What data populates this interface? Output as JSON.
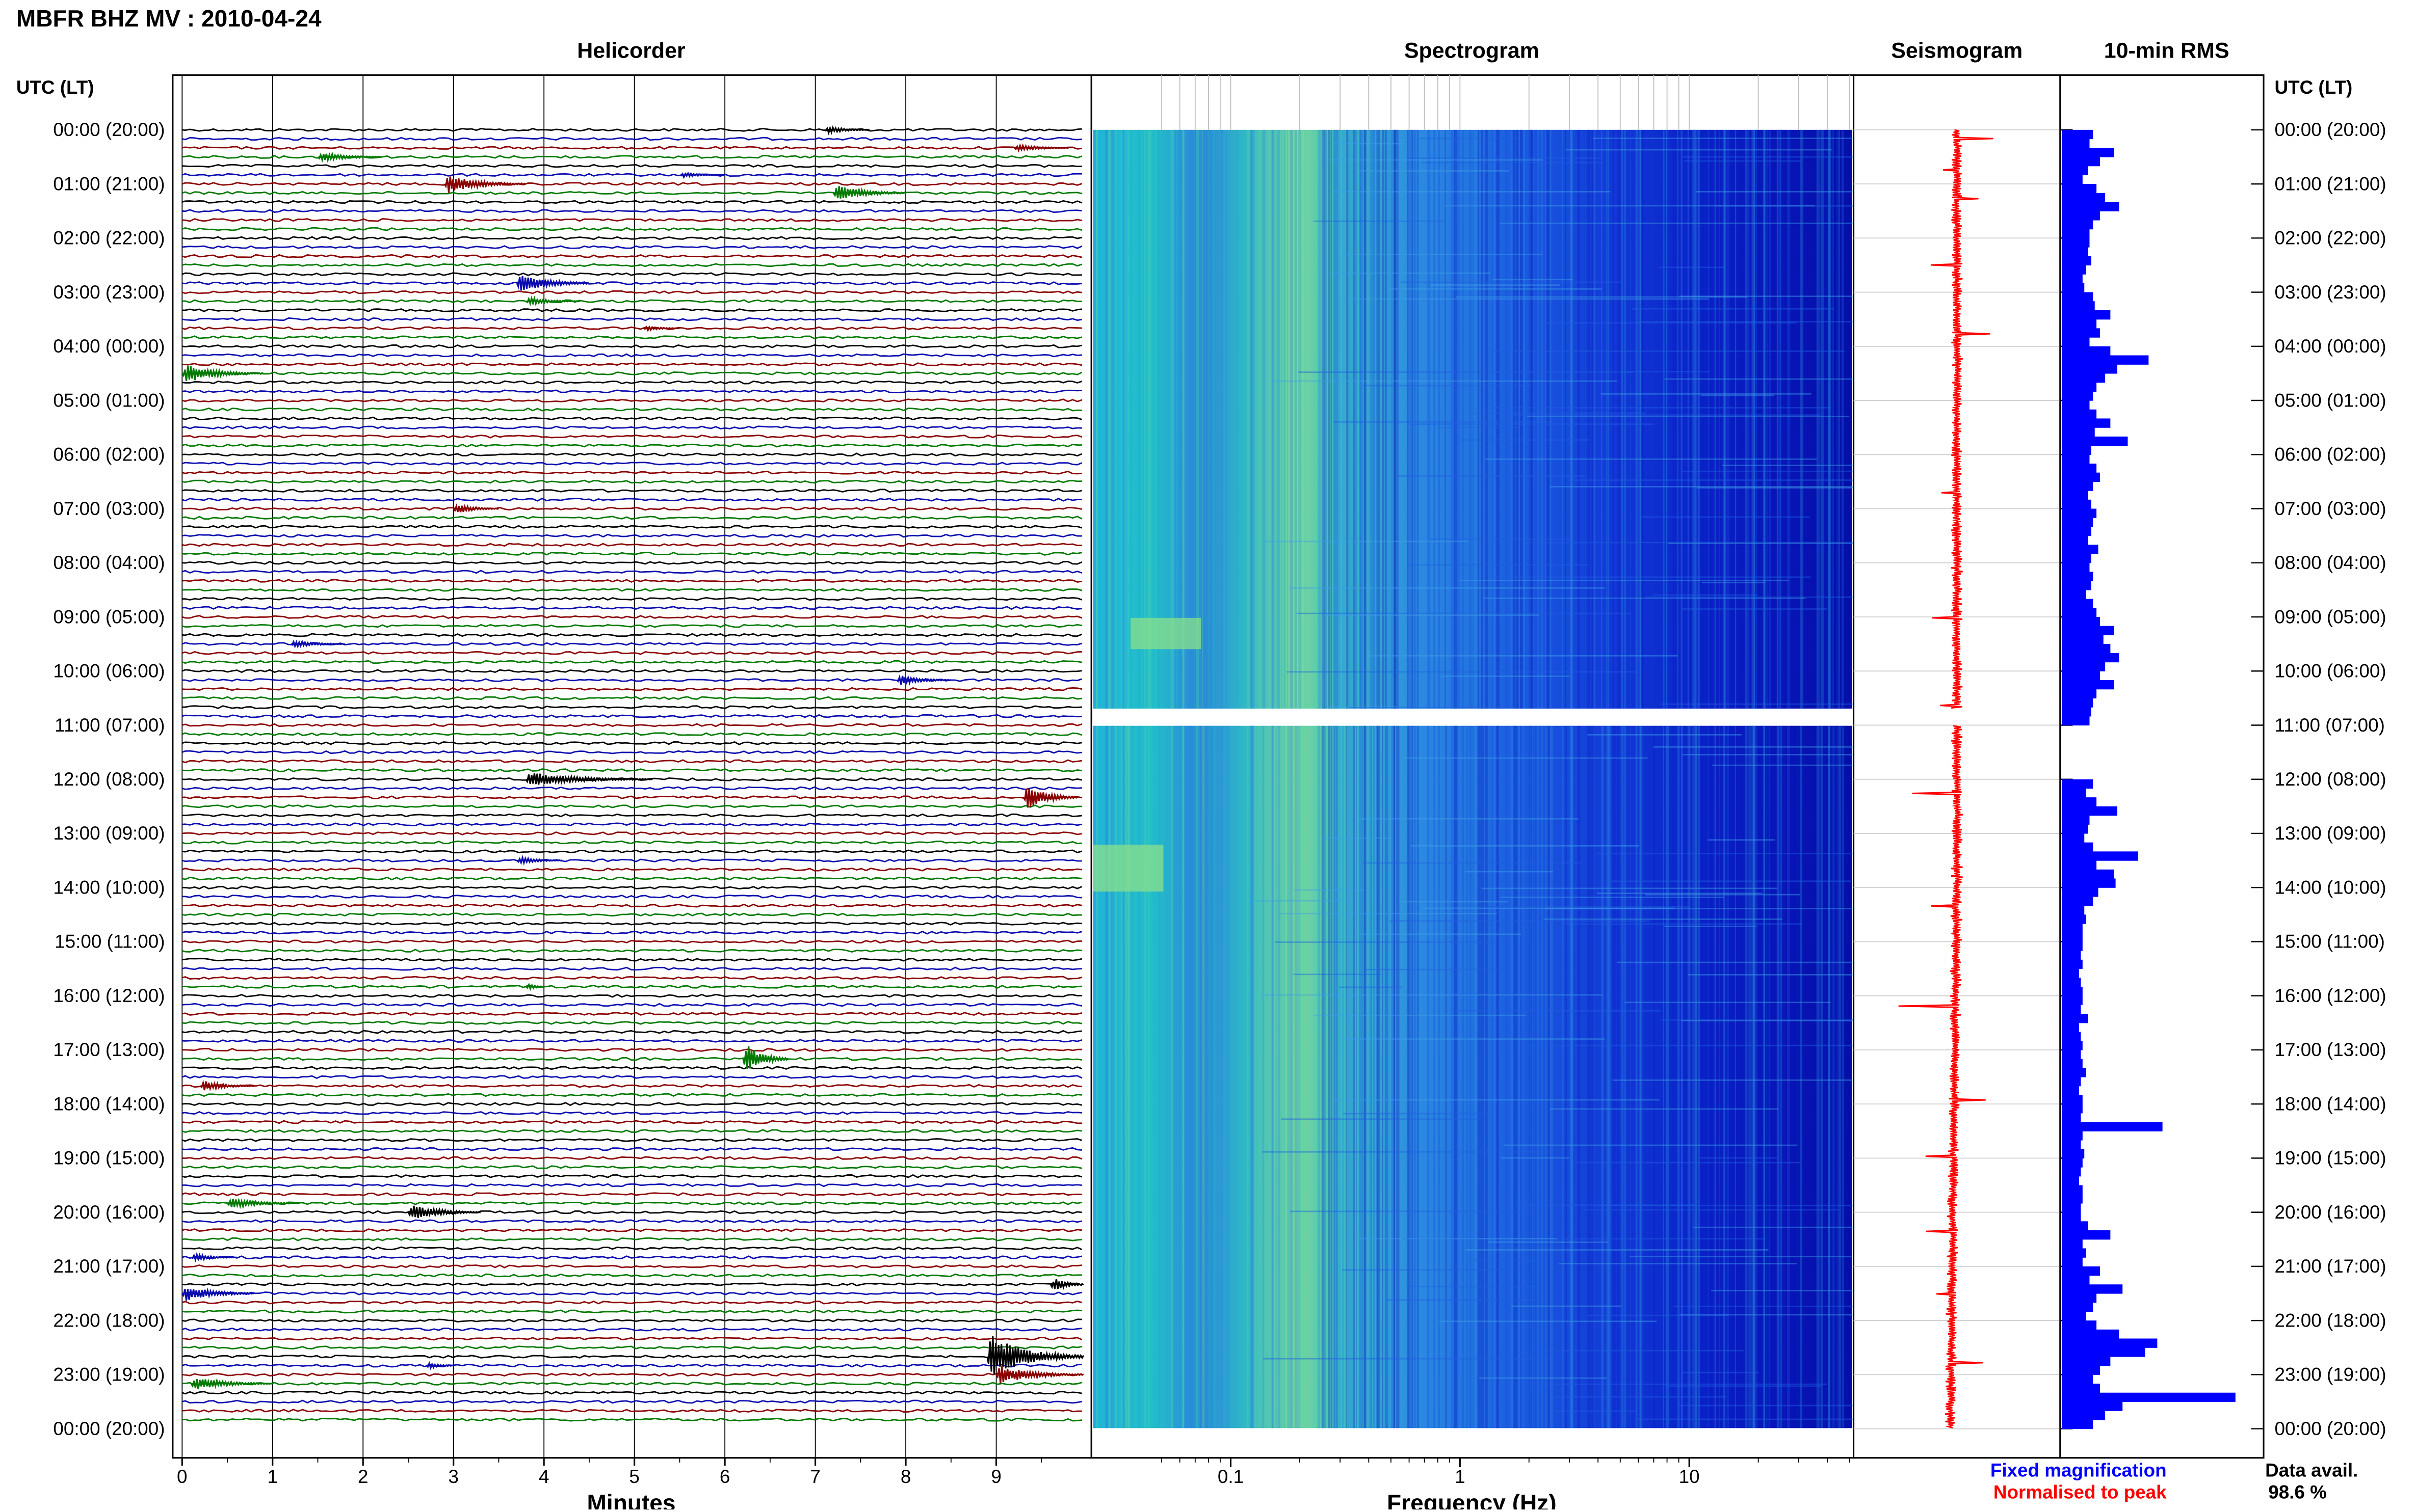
{
  "title": "MBFR BHZ MV : 2010-04-24",
  "panels": {
    "helicorder": "Helicorder",
    "spectrogram": "Spectrogram",
    "seismogram": "Seismogram",
    "rms": "10-min RMS"
  },
  "utc_label": "UTC (LT)",
  "time_labels": [
    "00:00 (20:00)",
    "01:00 (21:00)",
    "02:00 (22:00)",
    "03:00 (23:00)",
    "04:00 (00:00)",
    "05:00 (01:00)",
    "06:00 (02:00)",
    "07:00 (03:00)",
    "08:00 (04:00)",
    "09:00 (05:00)",
    "10:00 (06:00)",
    "11:00 (07:00)",
    "12:00 (08:00)",
    "13:00 (09:00)",
    "14:00 (10:00)",
    "15:00 (11:00)",
    "16:00 (12:00)",
    "17:00 (13:00)",
    "18:00 (14:00)",
    "19:00 (15:00)",
    "20:00 (16:00)",
    "21:00 (17:00)",
    "22:00 (18:00)",
    "23:00 (19:00)",
    "00:00 (20:00)"
  ],
  "helicorder_axis": {
    "label": "Minutes",
    "ticks": [
      "0",
      "1",
      "2",
      "3",
      "4",
      "5",
      "6",
      "7",
      "8",
      "9"
    ]
  },
  "spectrogram_axis": {
    "label": "Frequency (Hz)",
    "ticks": [
      "0.1",
      "1",
      "10"
    ],
    "scale": "log"
  },
  "legend": {
    "fixed": "Fixed magnification",
    "normalised": "Normalised to peak"
  },
  "availability": {
    "label": "Data avail.",
    "value": "98.6 %"
  },
  "colors": {
    "trace1": "#000000",
    "trace2": "#0b0bb0",
    "trace3": "#8b0000",
    "trace4": "#007a00",
    "rms_bar": "#0000ff",
    "seismo": "#ff0000",
    "fixed": "#0000ff",
    "normalised": "#ff0000"
  },
  "chart_data": {
    "type": "bar",
    "title": "10-min RMS",
    "categories": [
      "00:00 (20:00)",
      "01:00 (21:00)",
      "02:00 (22:00)",
      "03:00 (23:00)",
      "04:00 (00:00)",
      "05:00 (01:00)",
      "06:00 (02:00)",
      "07:00 (03:00)",
      "08:00 (04:00)",
      "09:00 (05:00)",
      "10:00 (06:00)",
      "11:00 (07:00)",
      "12:00 (08:00)",
      "13:00 (09:00)",
      "14:00 (10:00)",
      "15:00 (11:00)",
      "16:00 (12:00)",
      "17:00 (13:00)",
      "18:00 (14:00)",
      "19:00 (15:00)",
      "20:00 (16:00)",
      "21:00 (17:00)",
      "22:00 (18:00)",
      "23:00 (19:00)"
    ],
    "rms_10min": [
      0.18,
      0.16,
      0.3,
      0.22,
      0.15,
      0.12,
      0.2,
      0.25,
      0.33,
      0.22,
      0.18,
      0.16,
      0.16,
      0.15,
      0.17,
      0.14,
      0.12,
      0.13,
      0.18,
      0.19,
      0.28,
      0.2,
      0.22,
      0.16,
      0.28,
      0.5,
      0.32,
      0.25,
      0.2,
      0.18,
      0.16,
      0.2,
      0.28,
      0.19,
      0.38,
      0.17,
      0.16,
      0.2,
      0.22,
      0.18,
      0.15,
      0.17,
      0.2,
      0.18,
      0.17,
      0.15,
      0.21,
      0.17,
      0.16,
      0.18,
      0.17,
      0.14,
      0.18,
      0.2,
      0.22,
      0.3,
      0.24,
      0.28,
      0.33,
      0.25,
      0.22,
      0.3,
      0.2,
      0.18,
      0.17,
      0.16,
      0.0,
      0.0,
      0.0,
      0.0,
      0.0,
      0.0,
      0.18,
      0.14,
      0.2,
      0.32,
      0.16,
      0.15,
      0.13,
      0.18,
      0.44,
      0.2,
      0.3,
      0.31,
      0.21,
      0.18,
      0.13,
      0.14,
      0.12,
      0.12,
      0.12,
      0.11,
      0.12,
      0.1,
      0.11,
      0.12,
      0.12,
      0.11,
      0.15,
      0.1,
      0.11,
      0.12,
      0.11,
      0.12,
      0.14,
      0.11,
      0.1,
      0.12,
      0.12,
      0.11,
      0.58,
      0.12,
      0.11,
      0.13,
      0.12,
      0.11,
      0.1,
      0.12,
      0.12,
      0.11,
      0.11,
      0.15,
      0.28,
      0.12,
      0.14,
      0.12,
      0.22,
      0.16,
      0.35,
      0.2,
      0.18,
      0.14,
      0.2,
      0.33,
      0.55,
      0.48,
      0.28,
      0.22,
      0.18,
      0.22,
      1.0,
      0.35,
      0.25,
      0.18
    ]
  }
}
